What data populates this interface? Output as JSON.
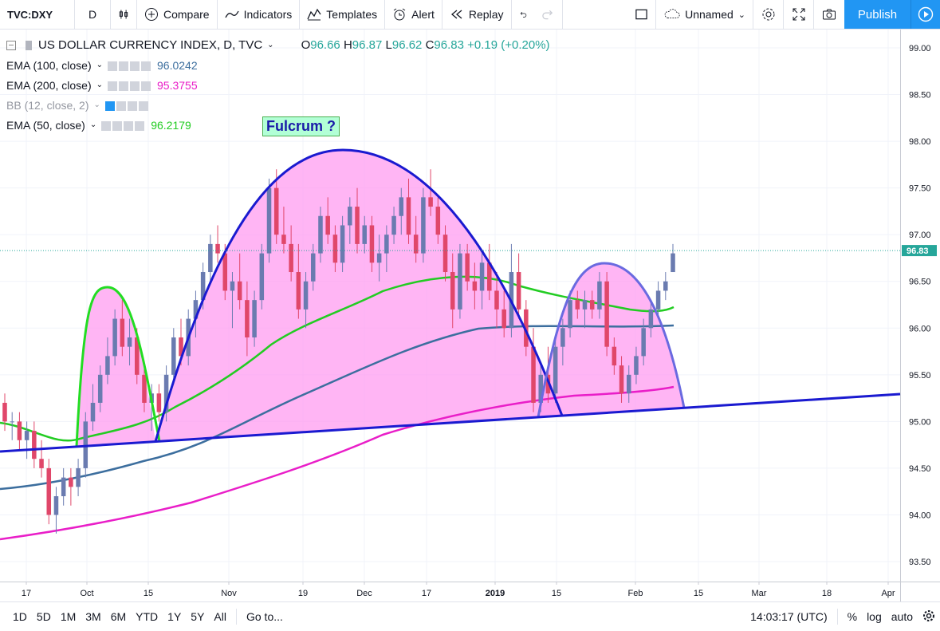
{
  "toolbar": {
    "symbol": "TVC:DXY",
    "interval": "D",
    "compare": "Compare",
    "indicators": "Indicators",
    "templates": "Templates",
    "alert": "Alert",
    "replay": "Replay",
    "layout_name": "Unnamed",
    "publish": "Publish"
  },
  "legend": {
    "title": "US DOLLAR CURRENCY INDEX, D, TVC",
    "ohlc": {
      "o_label": "O",
      "o": "96.66",
      "h_label": "H",
      "h": "96.87",
      "l_label": "L",
      "l": "96.62",
      "c_label": "C",
      "c": "96.83",
      "change": "+0.19 (+0.20%)"
    },
    "indicators": [
      {
        "name": "EMA (100, close)",
        "value": "96.0242",
        "color": "#3c6e9e"
      },
      {
        "name": "EMA (200, close)",
        "value": "95.3755",
        "color": "#e91ec8"
      },
      {
        "name": "BB (12, close, 2)",
        "value": "",
        "color": "#9598a1"
      },
      {
        "name": "EMA (50, close)",
        "value": "96.2179",
        "color": "#22cc22"
      }
    ]
  },
  "annotation": {
    "text": "Fulcrum ?"
  },
  "price_axis": {
    "ticks": [
      "99.00",
      "98.50",
      "98.00",
      "97.50",
      "97.00",
      "96.50",
      "96.00",
      "95.50",
      "95.00",
      "94.50",
      "94.00",
      "93.50"
    ],
    "last_price": "96.83"
  },
  "time_axis": {
    "ticks": [
      "17",
      "Oct",
      "15",
      "Nov",
      "19",
      "Dec",
      "17",
      "2019",
      "15",
      "Feb",
      "15",
      "Mar",
      "18",
      "Apr"
    ]
  },
  "bottombar": {
    "ranges": [
      "1D",
      "5D",
      "1M",
      "3M",
      "6M",
      "YTD",
      "1Y",
      "5Y",
      "All"
    ],
    "goto": "Go to...",
    "clock": "14:03:17 (UTC)",
    "percent": "%",
    "log": "log",
    "auto": "auto"
  },
  "colors": {
    "up": "#6a7bb0",
    "down": "#e0476a",
    "ema50": "#22cc22",
    "ema100": "#3c6e9e",
    "ema200": "#e91ec8",
    "shade": "#ff9cf0",
    "arc": "#1a1ad0"
  },
  "chart_data": {
    "type": "candlestick",
    "title": "US DOLLAR CURRENCY INDEX, D, TVC",
    "ylim": [
      93.4,
      99.1
    ],
    "candles": [
      [
        95.2,
        95.3,
        94.9,
        95.0
      ],
      [
        95.0,
        95.1,
        94.8,
        95.0
      ],
      [
        95.0,
        95.1,
        94.7,
        94.8
      ],
      [
        94.8,
        95.0,
        94.6,
        94.9
      ],
      [
        94.9,
        95.0,
        94.5,
        94.6
      ],
      [
        94.6,
        94.8,
        94.4,
        94.5
      ],
      [
        94.5,
        94.6,
        93.9,
        94.0
      ],
      [
        94.0,
        94.3,
        93.8,
        94.2
      ],
      [
        94.2,
        94.5,
        94.1,
        94.4
      ],
      [
        94.4,
        94.5,
        94.1,
        94.3
      ],
      [
        94.3,
        94.6,
        94.2,
        94.5
      ],
      [
        94.5,
        95.1,
        94.4,
        95.0
      ],
      [
        95.0,
        95.4,
        94.9,
        95.2
      ],
      [
        95.2,
        95.6,
        95.1,
        95.5
      ],
      [
        95.5,
        95.9,
        95.4,
        95.7
      ],
      [
        95.7,
        96.2,
        95.6,
        96.1
      ],
      [
        96.1,
        96.3,
        95.7,
        95.8
      ],
      [
        95.8,
        96.1,
        95.6,
        95.9
      ],
      [
        95.9,
        96.0,
        95.4,
        95.5
      ],
      [
        95.5,
        95.6,
        95.1,
        95.2
      ],
      [
        95.2,
        95.4,
        94.9,
        95.3
      ],
      [
        95.3,
        95.4,
        95.0,
        95.1
      ],
      [
        95.1,
        95.6,
        95.0,
        95.5
      ],
      [
        95.5,
        96.0,
        95.4,
        95.9
      ],
      [
        95.9,
        96.1,
        95.6,
        95.7
      ],
      [
        95.7,
        96.2,
        95.6,
        96.1
      ],
      [
        96.1,
        96.4,
        95.9,
        96.3
      ],
      [
        96.3,
        96.7,
        96.2,
        96.6
      ],
      [
        96.6,
        97.0,
        96.5,
        96.9
      ],
      [
        96.9,
        97.1,
        96.7,
        96.8
      ],
      [
        96.8,
        96.9,
        96.3,
        96.4
      ],
      [
        96.4,
        96.6,
        96.0,
        96.5
      ],
      [
        96.5,
        96.8,
        96.2,
        96.3
      ],
      [
        96.3,
        96.5,
        95.7,
        95.9
      ],
      [
        95.9,
        96.4,
        95.8,
        96.3
      ],
      [
        96.3,
        96.9,
        96.2,
        96.8
      ],
      [
        96.8,
        97.6,
        96.7,
        97.5
      ],
      [
        97.5,
        97.7,
        96.9,
        97.0
      ],
      [
        97.0,
        97.3,
        96.8,
        96.9
      ],
      [
        96.9,
        97.1,
        96.5,
        96.6
      ],
      [
        96.6,
        96.9,
        96.1,
        96.2
      ],
      [
        96.2,
        96.6,
        96.0,
        96.5
      ],
      [
        96.5,
        96.9,
        96.4,
        96.8
      ],
      [
        96.8,
        97.3,
        96.7,
        97.2
      ],
      [
        97.2,
        97.4,
        96.9,
        97.0
      ],
      [
        97.0,
        97.1,
        96.6,
        96.7
      ],
      [
        96.7,
        97.2,
        96.6,
        97.1
      ],
      [
        97.1,
        97.4,
        96.9,
        97.3
      ],
      [
        97.3,
        97.5,
        96.8,
        96.9
      ],
      [
        96.9,
        97.2,
        96.8,
        97.1
      ],
      [
        97.1,
        97.2,
        96.6,
        96.7
      ],
      [
        96.7,
        97.0,
        96.5,
        96.8
      ],
      [
        96.8,
        97.1,
        96.6,
        97.0
      ],
      [
        97.0,
        97.3,
        96.9,
        97.2
      ],
      [
        97.2,
        97.5,
        97.0,
        97.4
      ],
      [
        97.4,
        97.6,
        96.9,
        97.0
      ],
      [
        97.0,
        97.2,
        96.7,
        96.8
      ],
      [
        96.8,
        97.5,
        96.7,
        97.4
      ],
      [
        97.4,
        97.7,
        97.2,
        97.3
      ],
      [
        97.3,
        97.4,
        96.9,
        97.0
      ],
      [
        97.0,
        97.1,
        96.5,
        96.6
      ],
      [
        96.6,
        96.8,
        96.0,
        96.2
      ],
      [
        96.2,
        96.9,
        96.1,
        96.8
      ],
      [
        96.8,
        96.9,
        96.4,
        96.5
      ],
      [
        96.5,
        96.7,
        96.2,
        96.4
      ],
      [
        96.4,
        96.8,
        96.2,
        96.7
      ],
      [
        96.7,
        96.9,
        96.3,
        96.4
      ],
      [
        96.4,
        96.6,
        96.0,
        96.2
      ],
      [
        96.2,
        96.4,
        95.9,
        96.0
      ],
      [
        96.0,
        96.9,
        95.9,
        96.6
      ],
      [
        96.6,
        96.8,
        96.1,
        96.2
      ],
      [
        96.2,
        96.3,
        95.7,
        95.8
      ],
      [
        95.8,
        96.0,
        95.1,
        95.2
      ],
      [
        95.2,
        95.6,
        95.1,
        95.5
      ],
      [
        95.5,
        95.8,
        95.2,
        95.3
      ],
      [
        95.3,
        95.9,
        95.2,
        95.8
      ],
      [
        95.8,
        96.1,
        95.6,
        96.0
      ],
      [
        96.0,
        96.4,
        95.9,
        96.3
      ],
      [
        96.3,
        96.4,
        96.1,
        96.2
      ],
      [
        96.2,
        96.4,
        96.0,
        96.3
      ],
      [
        96.3,
        96.4,
        96.1,
        96.2
      ],
      [
        96.2,
        96.6,
        96.1,
        96.5
      ],
      [
        96.5,
        96.6,
        95.7,
        95.8
      ],
      [
        95.8,
        95.9,
        95.5,
        95.6
      ],
      [
        95.6,
        95.7,
        95.2,
        95.3
      ],
      [
        95.3,
        95.6,
        95.2,
        95.5
      ],
      [
        95.5,
        95.8,
        95.4,
        95.7
      ],
      [
        95.7,
        96.1,
        95.6,
        96.0
      ],
      [
        96.0,
        96.3,
        95.9,
        96.2
      ],
      [
        96.2,
        96.5,
        96.1,
        96.4
      ],
      [
        96.4,
        96.6,
        96.3,
        96.5
      ],
      [
        96.6,
        96.9,
        96.6,
        96.8
      ]
    ]
  }
}
